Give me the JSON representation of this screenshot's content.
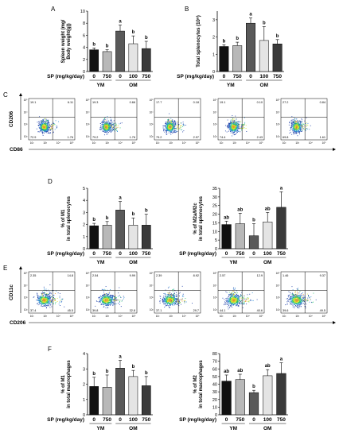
{
  "colors": {
    "bars": [
      "#111111",
      "#b8b8b8",
      "#595959",
      "#e4e4e4",
      "#3a3a3a"
    ],
    "flow_dots": [
      "#1e3fa8",
      "#2f8fd6",
      "#26c96a",
      "#d9e22a",
      "#e8962a"
    ]
  },
  "panel_letters": [
    "A",
    "B",
    "C",
    "D",
    "E",
    "F"
  ],
  "x_axis": {
    "sp_label": "SP (mg/kg/day)",
    "doses": [
      "0",
      "750",
      "0",
      "100",
      "750"
    ],
    "groups": [
      "YM",
      "OM"
    ]
  },
  "flow_C": {
    "xlabel": "CD86",
    "ylabel": "CD206",
    "tick_exponents": [
      "10²",
      "10³",
      "10⁴",
      "10⁵"
    ],
    "plots": [
      {
        "ul": "19.1",
        "ur": "6.11",
        "ll": "72.9",
        "lr": "1.76"
      },
      {
        "ul": "19.3",
        "ur": "0.66",
        "ll": "79.2",
        "lr": "1.76"
      },
      {
        "ul": "17.7",
        "ur": "0.18",
        "ll": "79.2",
        "lr": "2.97"
      },
      {
        "ul": "19.1",
        "ur": "0.10",
        "ll": "74.4",
        "lr": "2.43"
      },
      {
        "ul": "27.2",
        "ur": "0.84",
        "ll": "69.8",
        "lr": "1.61"
      }
    ]
  },
  "flow_E": {
    "xlabel": "CD206",
    "ylabel": "CD11c",
    "tick_exponents": [
      "10²",
      "10³",
      "10⁴",
      "10⁵"
    ],
    "plots": [
      {
        "ul": "2.35",
        "ur": "14.8",
        "ll": "37.4",
        "lr": "45.5"
      },
      {
        "ul": "2.54",
        "ur": "9.99",
        "ll": "39.8",
        "lr": "32.8"
      },
      {
        "ul": "2.39",
        "ur": "8.92",
        "ll": "37.1",
        "lr": "29.7"
      },
      {
        "ul": "2.57",
        "ur": "12.9",
        "ll": "44.1",
        "lr": "40.6"
      },
      {
        "ul": "1.46",
        "ur": "9.37",
        "ll": "39.6",
        "lr": "49.5"
      }
    ]
  },
  "chart_data": [
    {
      "panel": "A",
      "type": "bar",
      "categories": [
        "0",
        "750",
        "0",
        "100",
        "750"
      ],
      "values": [
        3.6,
        3.3,
        6.7,
        4.6,
        3.8
      ],
      "errors": [
        0.3,
        0.3,
        1.0,
        1.3,
        1.2
      ],
      "sig_letters": [
        "b",
        "b",
        "a",
        "b",
        "b"
      ],
      "ylabel_lines": [
        "Spleen weight (mg/",
        "Body weight(g))"
      ],
      "ylim": [
        0,
        10
      ],
      "yticks": [
        "0",
        "2",
        "4",
        "6",
        "8",
        "10"
      ]
    },
    {
      "panel": "B",
      "type": "bar",
      "categories": [
        "0",
        "750",
        "0",
        "100",
        "750"
      ],
      "values": [
        1.45,
        1.5,
        2.8,
        1.8,
        1.6
      ],
      "errors": [
        0.1,
        0.2,
        0.3,
        0.8,
        0.25
      ],
      "sig_letters": [
        "b",
        "b",
        "a",
        "b",
        "b"
      ],
      "ylabel_lines": [
        "Total splenocytes (10⁸)"
      ],
      "ylim": [
        0,
        3.5
      ],
      "yticks": [
        "0",
        "1",
        "2",
        "3"
      ]
    },
    {
      "panel": "D-left",
      "type": "bar",
      "categories": [
        "0",
        "750",
        "0",
        "100",
        "750"
      ],
      "values": [
        1.9,
        1.95,
        3.2,
        1.95,
        1.95
      ],
      "errors": [
        0.2,
        0.3,
        0.7,
        0.6,
        0.9
      ],
      "sig_letters": [
        "b",
        "b",
        "a",
        "b",
        "b"
      ],
      "ylabel_lines": [
        "% of M1",
        "in total splenocytes"
      ],
      "ylim": [
        0,
        5
      ],
      "yticks": [
        "0",
        "1",
        "2",
        "3",
        "4",
        "5"
      ]
    },
    {
      "panel": "D-right",
      "type": "bar",
      "categories": [
        "0",
        "750",
        "0",
        "100",
        "750"
      ],
      "values": [
        14,
        14.5,
        7.5,
        15.5,
        24
      ],
      "errors": [
        2,
        6,
        7,
        5.5,
        9
      ],
      "sig_letters": [
        "ab",
        "ab",
        "b",
        "ab",
        "a"
      ],
      "ylabel_lines": [
        "% of M2a/M2c",
        "in total splenocytes"
      ],
      "ylim": [
        0,
        35
      ],
      "yticks": [
        "0",
        "5",
        "10",
        "15",
        "20",
        "25",
        "30",
        "35"
      ]
    },
    {
      "panel": "F-left",
      "type": "bar",
      "categories": [
        "0",
        "750",
        "0",
        "100",
        "750"
      ],
      "values": [
        1.85,
        1.8,
        3.05,
        2.5,
        1.9
      ],
      "errors": [
        0.6,
        0.8,
        0.5,
        0.4,
        0.6
      ],
      "sig_letters": [
        "b",
        "b",
        "a",
        "b",
        "b"
      ],
      "ylabel_lines": [
        "% of M1",
        "in total macrophages"
      ],
      "ylim": [
        0,
        4
      ],
      "yticks": [
        "0",
        "1",
        "2",
        "3",
        "4"
      ]
    },
    {
      "panel": "F-right",
      "type": "bar",
      "categories": [
        "0",
        "750",
        "0",
        "100",
        "750"
      ],
      "values": [
        44,
        46,
        29,
        51,
        54
      ],
      "errors": [
        8,
        7,
        3,
        8,
        14
      ],
      "sig_letters": [
        "ab",
        "ab",
        "b",
        "ab",
        "a"
      ],
      "ylabel_lines": [
        "% of M2",
        "in total macrophages"
      ],
      "ylim": [
        0,
        80
      ],
      "yticks": [
        "0",
        "10",
        "20",
        "30",
        "40",
        "50",
        "60",
        "70",
        "80"
      ]
    }
  ]
}
